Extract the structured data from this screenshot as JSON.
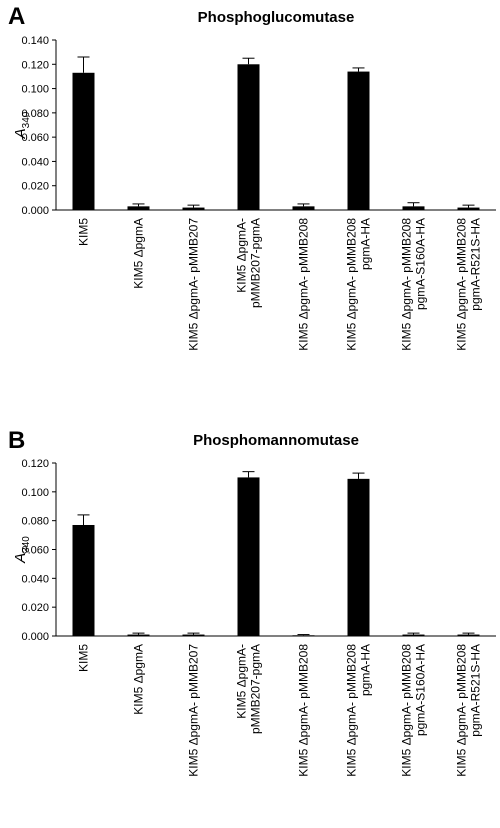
{
  "chart_data": [
    {
      "type": "bar",
      "panel_label": "A",
      "title": "Phosphoglucomutase",
      "y_label": {
        "text": "A",
        "subscript": "340"
      },
      "categories": [
        "KIM5",
        "KIM5 ΔpgmA",
        "KIM5 ΔpgmA- pMMB207",
        "KIM5 ΔpgmA-\npMMB207-pgmA",
        "KIM5 ΔpgmA- pMMB208",
        "KIM5 ΔpgmA- pMMB208\npgmA-HA",
        "KIM5 ΔpgmA- pMMB208\npgmA-S160A-HA",
        "KIM5 ΔpgmA- pMMB208\npgmA-R521S-HA"
      ],
      "values": [
        0.113,
        0.003,
        0.002,
        0.12,
        0.003,
        0.114,
        0.003,
        0.002
      ],
      "errors": [
        0.013,
        0.002,
        0.002,
        0.005,
        0.002,
        0.003,
        0.003,
        0.002
      ],
      "color": "#000000",
      "ylim": [
        0,
        0.14
      ],
      "yticks": [
        {
          "value": 0,
          "label": "0.000"
        },
        {
          "value": 0.02,
          "label": "0.020"
        },
        {
          "value": 0.04,
          "label": "0.040"
        },
        {
          "value": 0.06,
          "label": "0.060"
        },
        {
          "value": 0.08,
          "label": "0.080"
        },
        {
          "value": 0.1,
          "label": "0.100"
        },
        {
          "value": 0.12,
          "label": "0.120"
        },
        {
          "value": 0.14,
          "label": "0.140"
        }
      ]
    },
    {
      "type": "bar",
      "panel_label": "B",
      "title": "Phosphomannomutase",
      "y_label": {
        "text": "A",
        "subscript": "340"
      },
      "categories": [
        "KIM5",
        "KIM5 ΔpgmA",
        "KIM5 ΔpgmA- pMMB207",
        "KIM5 ΔpgmA-\npMMB207-pgmA",
        "KIM5 ΔpgmA- pMMB208",
        "KIM5 ΔpgmA- pMMB208\npgmA-HA",
        "KIM5 ΔpgmA- pMMB208\npgmA-S160A-HA",
        "KIM5 ΔpgmA- pMMB208\npgmA-R521S-HA"
      ],
      "values": [
        0.077,
        0.001,
        0.001,
        0.11,
        0.0005,
        0.109,
        0.001,
        0.001
      ],
      "errors": [
        0.007,
        0.001,
        0.001,
        0.004,
        0.0005,
        0.004,
        0.001,
        0.001
      ],
      "color": "#000000",
      "ylim": [
        0,
        0.12
      ],
      "yticks": [
        {
          "value": 0,
          "label": "0.000"
        },
        {
          "value": 0.02,
          "label": "0.020"
        },
        {
          "value": 0.04,
          "label": "0.040"
        },
        {
          "value": 0.06,
          "label": "0.060"
        },
        {
          "value": 0.08,
          "label": "0.080"
        },
        {
          "value": 0.1,
          "label": "0.100"
        },
        {
          "value": 0.12,
          "label": "0.120"
        }
      ]
    }
  ]
}
